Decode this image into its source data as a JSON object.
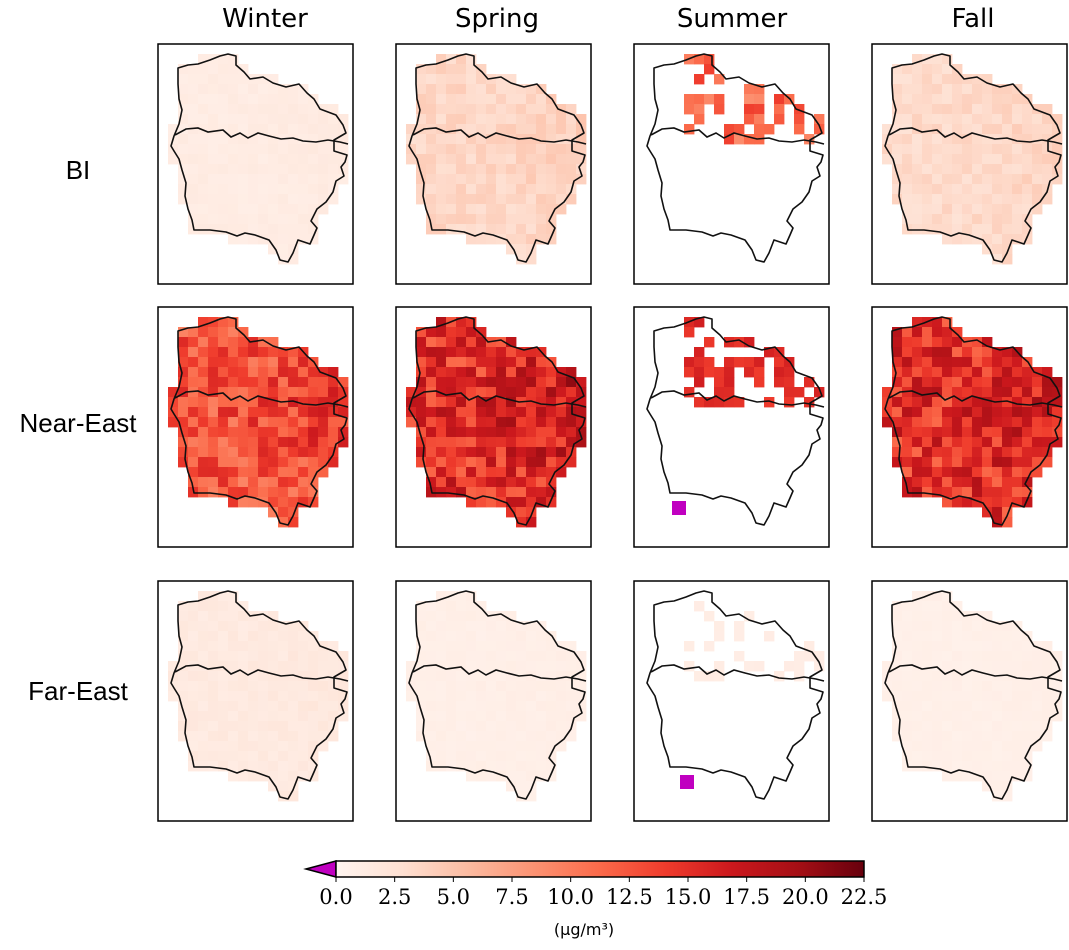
{
  "chart_data": {
    "type": "heatmap",
    "columns": [
      "Winter",
      "Spring",
      "Summer",
      "Fall"
    ],
    "rows": [
      "BI",
      "Near-East",
      "Far-East"
    ],
    "colorbar": {
      "colormap": "Reds",
      "range": [
        0.0,
        22.5
      ],
      "ticks": [
        "0.0",
        "2.5",
        "5.0",
        "7.5",
        "10.0",
        "12.5",
        "15.0",
        "17.5",
        "20.0",
        "22.5"
      ],
      "under_color": "#c000c0",
      "extend": "min",
      "unit": "(μg/m³)"
    },
    "panels": [
      {
        "row": "BI",
        "column": "Winter",
        "level": 1.2
      },
      {
        "row": "BI",
        "column": "Spring",
        "level": 3.5
      },
      {
        "row": "BI",
        "column": "Summer",
        "level": 1.5,
        "coverage": "partial",
        "max": 14
      },
      {
        "row": "BI",
        "column": "Fall",
        "level": 3.2
      },
      {
        "row": "Near-East",
        "column": "Winter",
        "level": 12.5
      },
      {
        "row": "Near-East",
        "column": "Spring",
        "level": 15.0,
        "max": 22.5
      },
      {
        "row": "Near-East",
        "column": "Summer",
        "level": 11.0,
        "coverage": "partial",
        "has_below_range": true
      },
      {
        "row": "Near-East",
        "column": "Fall",
        "level": 15.0,
        "max": 20.0
      },
      {
        "row": "Far-East",
        "column": "Winter",
        "level": 1.5
      },
      {
        "row": "Far-East",
        "column": "Spring",
        "level": 0.8
      },
      {
        "row": "Far-East",
        "column": "Summer",
        "level": 0.8,
        "coverage": "partial",
        "has_below_range": true
      },
      {
        "row": "Far-East",
        "column": "Fall",
        "level": 0.7
      }
    ]
  }
}
